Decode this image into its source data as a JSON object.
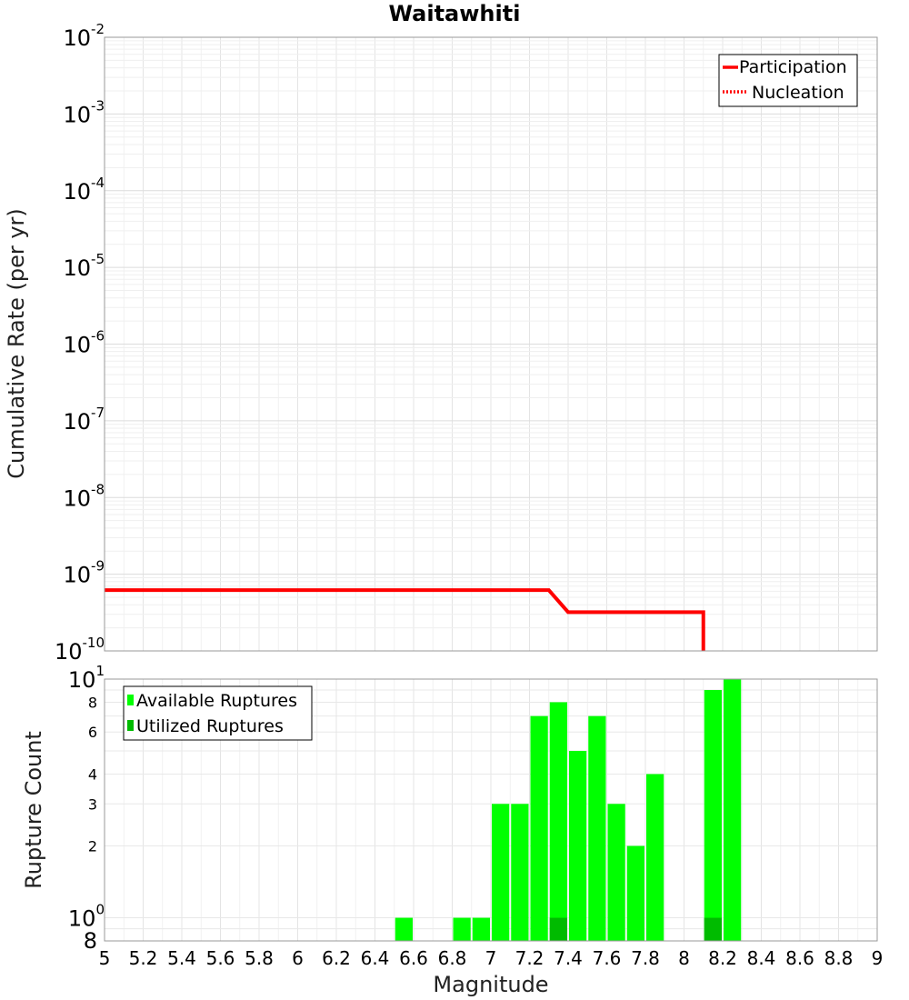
{
  "chart_data": [
    {
      "type": "line",
      "title": "Waitawhiti",
      "ylabel": "Cumulative Rate (per yr)",
      "xlim": [
        5,
        9
      ],
      "ylim": [
        1e-10,
        0.01
      ],
      "yscale": "log",
      "grid": true,
      "legend_position": "top-right",
      "y_ticks": [
        {
          "base": "10",
          "exp": "-2"
        },
        {
          "base": "10",
          "exp": "-3"
        },
        {
          "base": "10",
          "exp": "-4"
        },
        {
          "base": "10",
          "exp": "-5"
        },
        {
          "base": "10",
          "exp": "-6"
        },
        {
          "base": "10",
          "exp": "-7"
        },
        {
          "base": "10",
          "exp": "-8"
        },
        {
          "base": "10",
          "exp": "-9"
        },
        {
          "base": "10",
          "exp": "-10"
        }
      ],
      "series": [
        {
          "name": "Participation",
          "style": "solid",
          "color": "#ff0000",
          "x": [
            5.0,
            7.3,
            7.4,
            8.1,
            8.1
          ],
          "y": [
            6.2e-10,
            6.2e-10,
            3.2e-10,
            3.2e-10,
            1e-10
          ]
        },
        {
          "name": "Nucleation",
          "style": "dotted",
          "color": "#ff0000",
          "x": [],
          "y": []
        }
      ]
    },
    {
      "type": "bar",
      "xlabel": "Magnitude",
      "ylabel": "Rupture Count",
      "xlim": [
        5,
        9
      ],
      "ylim": [
        0.8,
        10
      ],
      "yscale": "log",
      "grid": true,
      "legend_position": "top-left",
      "x_ticks": [
        "5",
        "5.2",
        "5.4",
        "5.6",
        "5.8",
        "6",
        "6.2",
        "6.4",
        "6.6",
        "6.8",
        "7",
        "7.2",
        "7.4",
        "7.6",
        "7.8",
        "8",
        "8.2",
        "8.4",
        "8.6",
        "8.8",
        "9"
      ],
      "y_ticks_small": [
        "2",
        "3",
        "4",
        "6",
        "8"
      ],
      "y_ticks_minor_labels": [
        "8"
      ],
      "y_ticks_major": [
        {
          "base": "10",
          "exp": "0"
        },
        {
          "base": "10",
          "exp": "1"
        }
      ],
      "series": [
        {
          "name": "Available Ruptures",
          "color": "#00ff00",
          "x": [
            6.55,
            6.85,
            6.95,
            7.05,
            7.15,
            7.25,
            7.35,
            7.45,
            7.55,
            7.65,
            7.75,
            7.85,
            8.15,
            8.25
          ],
          "values": [
            1,
            1,
            1,
            3,
            3,
            7,
            8,
            5,
            7,
            3,
            2,
            4,
            9,
            10
          ]
        },
        {
          "name": "Utilized Ruptures",
          "color": "#00bb00",
          "x": [
            7.35,
            8.15
          ],
          "values": [
            1,
            1
          ]
        }
      ]
    }
  ]
}
